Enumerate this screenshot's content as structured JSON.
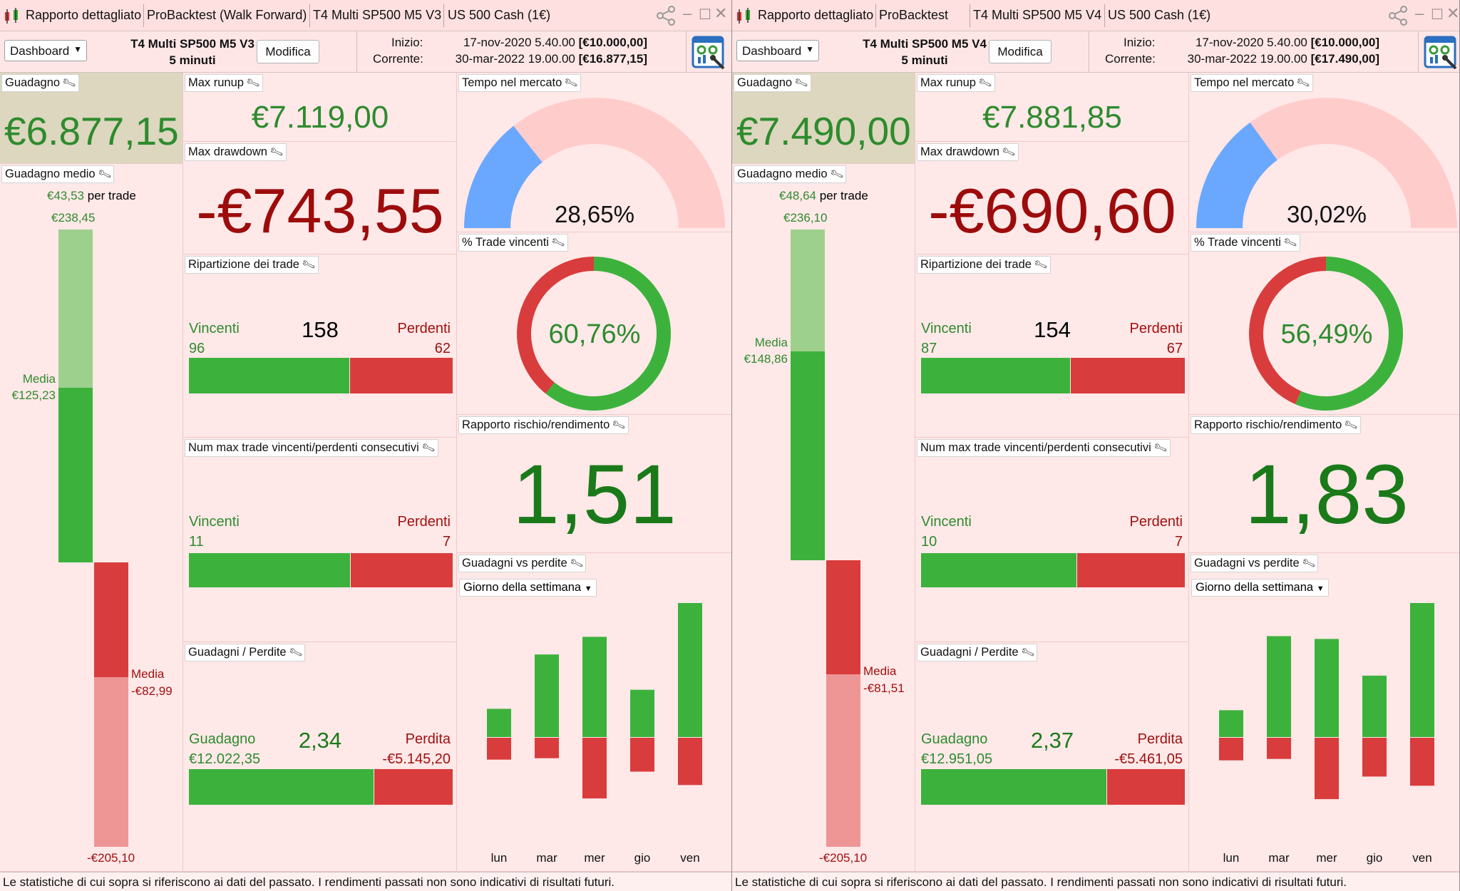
{
  "windows": [
    {
      "title_segments": [
        "Rapporto dettagliato",
        "ProBacktest (Walk Forward)",
        "T4 Multi SP500 M5 V3",
        "US 500 Cash (1€)"
      ],
      "dashboard_label": "Dashboard",
      "strategy_name": "T4 Multi SP500 M5 V3",
      "timeframe": "5 minuti",
      "edit_label": "Modifica",
      "start_label": "Inizio:",
      "start_value": "17-nov-2020 5.40.00",
      "start_capital": "[€10.000,00]",
      "current_label": "Corrente:",
      "current_value": "30-mar-2022 19.00.00",
      "current_capital": "[€16.877,15]",
      "gain_title": "Guadagno",
      "gain_value": "€6.877,15",
      "avg_gain_title": "Guadagno medio",
      "avg_per_trade_value": "€43,53",
      "avg_per_trade_suffix": "per trade",
      "avg_max": "€238,45",
      "avg_win_label": "Media",
      "avg_win_value": "€125,23",
      "avg_loss_label": "Media",
      "avg_loss_value": "-€82,99",
      "avg_min": "-€205,10",
      "avg_bar": {
        "max": 238.45,
        "avg_win": 125.23,
        "avg_loss": 82.99,
        "min": 205.1
      },
      "max_runup_title": "Max runup",
      "max_runup_value": "€7.119,00",
      "max_drawdown_title": "Max drawdown",
      "max_drawdown_value": "-€743,55",
      "time_in_market_title": "Tempo nel mercato",
      "time_in_market_value": "28,65%",
      "time_in_market_fraction": 0.2865,
      "win_pct_title": "% Trade vincenti",
      "win_pct_value": "60,76%",
      "win_pct_fraction": 0.6076,
      "breakdown_title": "Ripartizione dei trade",
      "breakdown_win_label": "Vincenti",
      "breakdown_win_value": "96",
      "breakdown_total": "158",
      "breakdown_loss_label": "Perdenti",
      "breakdown_loss_value": "62",
      "breakdown_win_fraction": 0.6076,
      "risk_reward_title": "Rapporto rischio/rendimento",
      "risk_reward_value": "1,51",
      "consec_title": "Num max trade vincenti/perdenti consecutivi",
      "consec_win_label": "Vincenti",
      "consec_win_value": "11",
      "consec_loss_label": "Perdenti",
      "consec_loss_value": "7",
      "consec_win_fraction": 0.611,
      "gvp_title": "Guadagni vs perdite",
      "gvp_dropdown": "Giorno della settimana",
      "gl_title": "Guadagni / Perdite",
      "gl_gain_label": "Guadagno",
      "gl_gain_value": "€12.022,35",
      "gl_ratio": "2,34",
      "gl_loss_label": "Perdita",
      "gl_loss_value": "-€5.145,20",
      "gl_gain_fraction": 0.7003,
      "footer": "Le statistiche di cui sopra si riferiscono ai dati del passato. I rendimenti passati non sono indicativi di risultati futuri.",
      "chart_data": {
        "type": "bar",
        "categories": [
          "lun",
          "mar",
          "mer",
          "gio",
          "ven"
        ],
        "series": [
          {
            "values": [
              40,
              117,
              142,
              67,
              250
            ]
          },
          {
            "values": [
              -31,
              -29,
              -86,
              -48,
              -67
            ]
          }
        ]
      }
    },
    {
      "title_segments": [
        "Rapporto dettagliato",
        "ProBacktest",
        "T4 Multi SP500 M5 V4",
        "US 500 Cash (1€)"
      ],
      "dashboard_label": "Dashboard",
      "strategy_name": "T4 Multi SP500 M5 V4",
      "timeframe": "5 minuti",
      "edit_label": "Modifica",
      "start_label": "Inizio:",
      "start_value": "17-nov-2020 5.40.00",
      "start_capital": "[€10.000,00]",
      "current_label": "Corrente:",
      "current_value": "30-mar-2022 19.00.00",
      "current_capital": "[€17.490,00]",
      "gain_title": "Guadagno",
      "gain_value": "€7.490,00",
      "avg_gain_title": "Guadagno medio",
      "avg_per_trade_value": "€48,64",
      "avg_per_trade_suffix": "per trade",
      "avg_max": "€236,10",
      "avg_win_label": "Media",
      "avg_win_value": "€148,86",
      "avg_loss_label": "Media",
      "avg_loss_value": "-€81,51",
      "avg_min": "-€205,10",
      "avg_bar": {
        "max": 236.1,
        "avg_win": 148.86,
        "avg_loss": 81.51,
        "min": 205.1
      },
      "max_runup_title": "Max runup",
      "max_runup_value": "€7.881,85",
      "max_drawdown_title": "Max drawdown",
      "max_drawdown_value": "-€690,60",
      "time_in_market_title": "Tempo nel mercato",
      "time_in_market_value": "30,02%",
      "time_in_market_fraction": 0.3002,
      "win_pct_title": "% Trade vincenti",
      "win_pct_value": "56,49%",
      "win_pct_fraction": 0.5649,
      "breakdown_title": "Ripartizione dei trade",
      "breakdown_win_label": "Vincenti",
      "breakdown_win_value": "87",
      "breakdown_total": "154",
      "breakdown_loss_label": "Perdenti",
      "breakdown_loss_value": "67",
      "breakdown_win_fraction": 0.5649,
      "risk_reward_title": "Rapporto rischio/rendimento",
      "risk_reward_value": "1,83",
      "consec_title": "Num max trade vincenti/perdenti consecutivi",
      "consec_win_label": "Vincenti",
      "consec_win_value": "10",
      "consec_loss_label": "Perdenti",
      "consec_loss_value": "7",
      "consec_win_fraction": 0.588,
      "gvp_title": "Guadagni vs perdite",
      "gvp_dropdown": "Giorno della settimana",
      "gl_title": "Guadagni / Perdite",
      "gl_gain_label": "Guadagno",
      "gl_gain_value": "€12.951,05",
      "gl_ratio": "2,37",
      "gl_loss_label": "Perdita",
      "gl_loss_value": "-€5.461,05",
      "gl_gain_fraction": 0.7034,
      "footer": "Le statistiche di cui sopra si riferiscono ai dati del passato. I rendimenti passati non sono indicativi di risultati futuri.",
      "chart_data": {
        "type": "bar",
        "categories": [
          "lun",
          "mar",
          "mer",
          "gio",
          "ven"
        ],
        "series": [
          {
            "values": [
              38,
              143,
              139,
              87,
              251
            ]
          },
          {
            "values": [
              -32,
              -30,
              -87,
              -55,
              -68
            ]
          }
        ]
      }
    }
  ]
}
